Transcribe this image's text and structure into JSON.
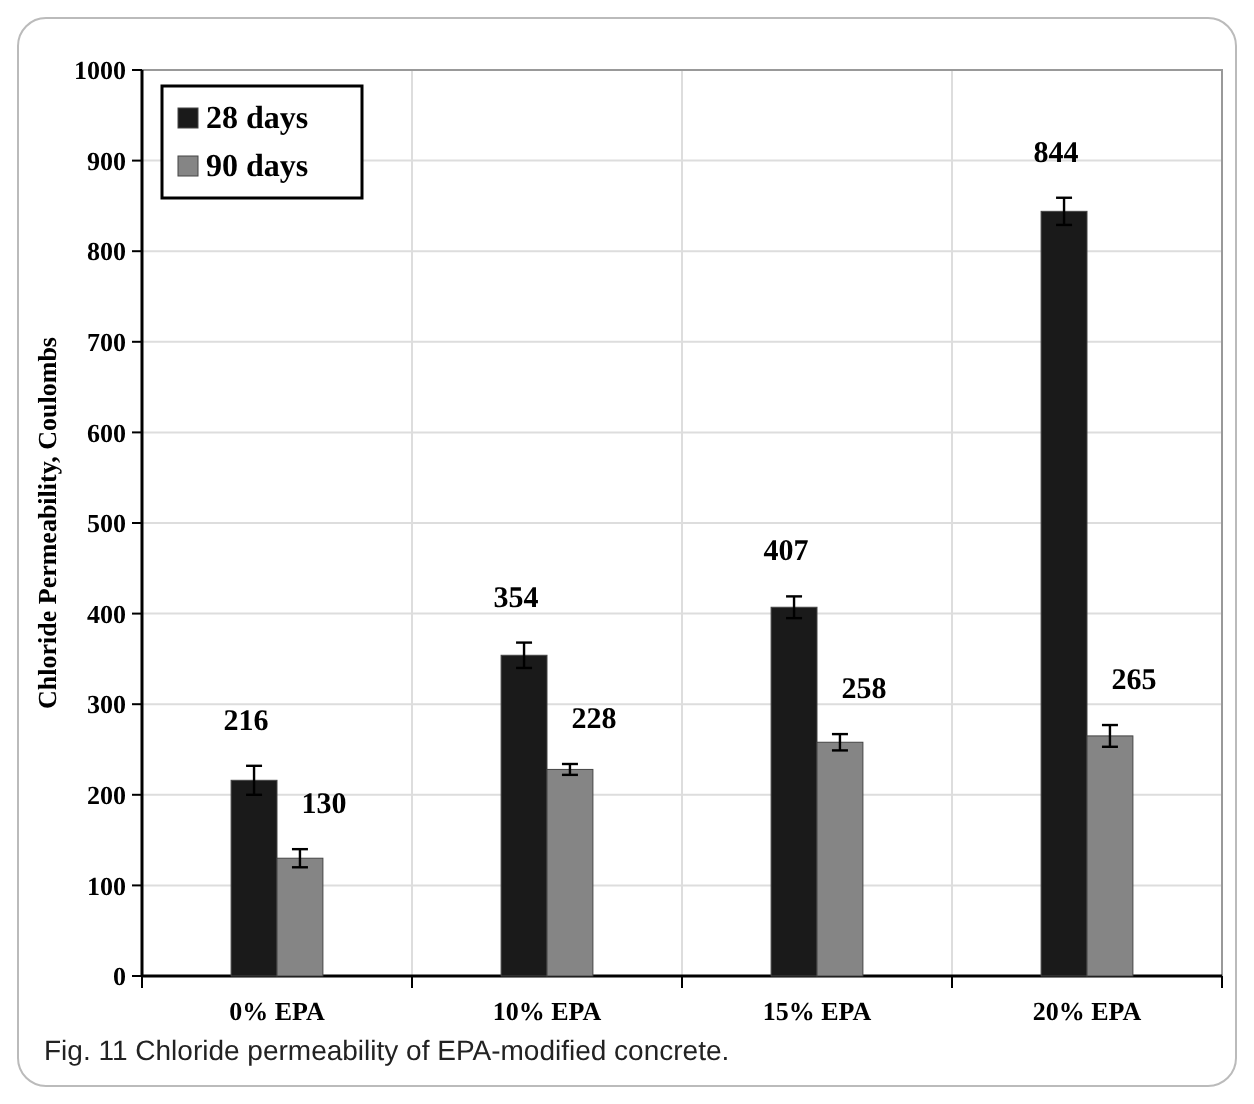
{
  "chart_data": {
    "type": "bar",
    "ylabel": "Chloride Permeability, Coulombs",
    "categories": [
      "0% EPA",
      "10% EPA",
      "15% EPA",
      "20% EPA"
    ],
    "series": [
      {
        "name": "28 days",
        "color": "#1a1a1a",
        "values": [
          216,
          354,
          407,
          844
        ],
        "errors": [
          16,
          14,
          12,
          15
        ]
      },
      {
        "name": "90 days",
        "color": "#858585",
        "values": [
          130,
          228,
          258,
          265
        ],
        "errors": [
          10,
          6,
          9,
          12
        ]
      }
    ],
    "ylim": [
      0,
      1000
    ],
    "yticks": [
      0,
      100,
      200,
      300,
      400,
      500,
      600,
      700,
      800,
      900,
      1000
    ],
    "grid": true,
    "legend": "top left",
    "data_labels": true,
    "annotations": [
      "Fig. 11  Chloride permeability of EPA-modified concrete."
    ]
  }
}
